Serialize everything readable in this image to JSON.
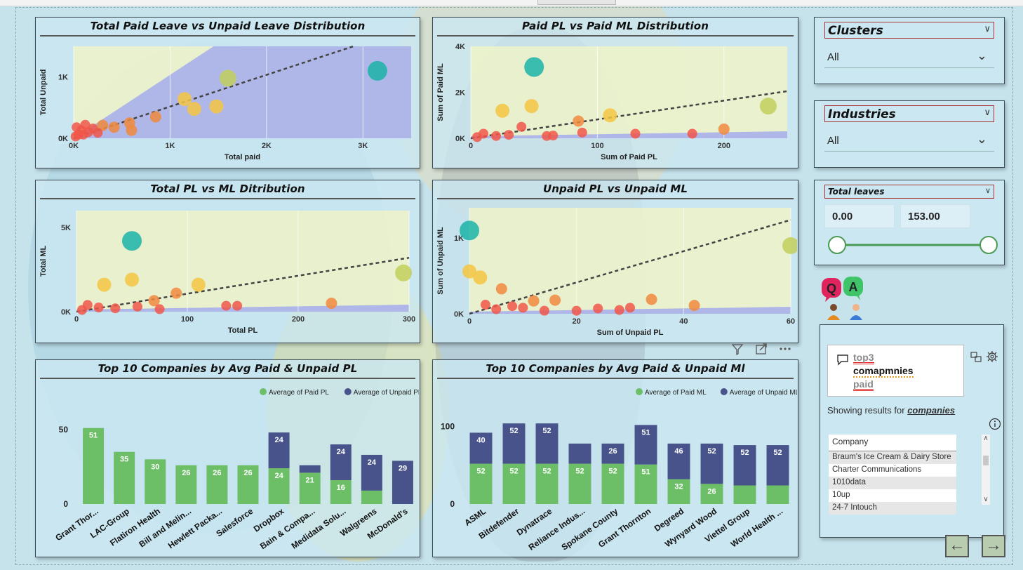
{
  "colors": {
    "paid": "#6dbf67",
    "unpaid": "#47538a",
    "teal": "#1bb3a8",
    "yellow": "#f5c542",
    "orange": "#f08a3e",
    "red": "#f0574a",
    "olive": "#c2cf5a",
    "band_purple": "#a9b0ec",
    "band_yellow": "#eef2c8"
  },
  "scatter1": {
    "title": "Total Paid Leave vs Unpaid Leave Distribution",
    "xlabel": "Total paid",
    "ylabel": "Total Unpaid",
    "xticks": [
      "0K",
      "1K",
      "2K",
      "3K"
    ],
    "yticks": [
      "0K",
      "1K"
    ]
  },
  "scatter2": {
    "title": "Paid PL vs Paid ML Distribution",
    "xlabel": "Sum of Paid PL",
    "ylabel": "Sum of Paid ML",
    "xticks": [
      "0",
      "100",
      "200"
    ],
    "yticks": [
      "0K",
      "2K",
      "4K"
    ]
  },
  "scatter3": {
    "title": "Total PL vs ML Ditribution",
    "xlabel": "Total PL",
    "ylabel": "Total ML",
    "xticks": [
      "0",
      "100",
      "200",
      "300"
    ],
    "yticks": [
      "0K",
      "5K"
    ]
  },
  "scatter4": {
    "title": "Unpaid PL vs Unpaid ML",
    "xlabel": "Sum of Unpaid PL",
    "ylabel": "Sum of Unpaid ML",
    "xticks": [
      "0",
      "20",
      "40",
      "60"
    ],
    "yticks": [
      "0K",
      "1K"
    ]
  },
  "bar1": {
    "title": "Top 10 Companies by Avg Paid & Unpaid PL",
    "legend": [
      "Average of Paid PL",
      "Average of Unpaid PL"
    ],
    "yticks": [
      "0",
      "50"
    ]
  },
  "bar2": {
    "title": "Top 10 Companies by Avg Paid & Unpaid Ml",
    "legend": [
      "Average of Paid ML",
      "Average of Unpaid ML"
    ],
    "yticks": [
      "0",
      "100"
    ]
  },
  "chart_data": [
    {
      "type": "scatter",
      "title": "Total Paid Leave vs Unpaid Leave Distribution",
      "xlabel": "Total paid",
      "ylabel": "Total Unpaid",
      "xlim": [
        0,
        3500
      ],
      "ylim": [
        0,
        1500
      ],
      "points": [
        [
          3150,
          1100,
          "teal"
        ],
        [
          1600,
          980,
          "olive"
        ],
        [
          1150,
          640,
          "yellow"
        ],
        [
          1250,
          480,
          "yellow"
        ],
        [
          1480,
          520,
          "yellow"
        ],
        [
          850,
          350,
          "orange"
        ],
        [
          600,
          130,
          "orange"
        ],
        [
          580,
          250,
          "orange"
        ],
        [
          420,
          180,
          "orange"
        ],
        [
          300,
          210,
          "orange"
        ],
        [
          200,
          160,
          "red"
        ],
        [
          150,
          100,
          "red"
        ],
        [
          120,
          220,
          "red"
        ],
        [
          80,
          130,
          "red"
        ],
        [
          50,
          60,
          "red"
        ],
        [
          30,
          180,
          "red"
        ],
        [
          20,
          30,
          "red"
        ],
        [
          100,
          60,
          "red"
        ],
        [
          250,
          90,
          "red"
        ]
      ],
      "trend": [
        [
          0,
          0
        ],
        [
          2900,
          1500
        ]
      ]
    },
    {
      "type": "scatter",
      "title": "Paid PL vs Paid ML Distribution",
      "xlabel": "Sum of Paid PL",
      "ylabel": "Sum of Paid ML",
      "xlim": [
        0,
        250
      ],
      "ylim": [
        0,
        4000
      ],
      "points": [
        [
          50,
          3100,
          "teal"
        ],
        [
          235,
          1400,
          "olive"
        ],
        [
          25,
          1200,
          "yellow"
        ],
        [
          48,
          1400,
          "yellow"
        ],
        [
          110,
          1000,
          "yellow"
        ],
        [
          85,
          750,
          "orange"
        ],
        [
          200,
          400,
          "orange"
        ],
        [
          40,
          500,
          "red"
        ],
        [
          88,
          250,
          "red"
        ],
        [
          130,
          200,
          "red"
        ],
        [
          175,
          200,
          "red"
        ],
        [
          10,
          200,
          "red"
        ],
        [
          20,
          100,
          "red"
        ],
        [
          30,
          150,
          "red"
        ],
        [
          60,
          100,
          "red"
        ],
        [
          65,
          120,
          "red"
        ],
        [
          5,
          50,
          "red"
        ]
      ],
      "trend": [
        [
          0,
          0
        ],
        [
          250,
          2050
        ]
      ]
    },
    {
      "type": "scatter",
      "title": "Total PL vs ML Ditribution",
      "xlabel": "Total PL",
      "ylabel": "Total ML",
      "xlim": [
        0,
        300
      ],
      "ylim": [
        0,
        6000
      ],
      "points": [
        [
          50,
          4200,
          "teal"
        ],
        [
          295,
          2300,
          "olive"
        ],
        [
          50,
          1900,
          "yellow"
        ],
        [
          25,
          1600,
          "yellow"
        ],
        [
          110,
          1600,
          "yellow"
        ],
        [
          90,
          1100,
          "orange"
        ],
        [
          70,
          650,
          "orange"
        ],
        [
          230,
          500,
          "orange"
        ],
        [
          135,
          350,
          "red"
        ],
        [
          145,
          350,
          "red"
        ],
        [
          10,
          400,
          "red"
        ],
        [
          20,
          250,
          "red"
        ],
        [
          35,
          200,
          "red"
        ],
        [
          55,
          300,
          "red"
        ],
        [
          75,
          150,
          "red"
        ],
        [
          5,
          100,
          "red"
        ]
      ],
      "trend": [
        [
          0,
          0
        ],
        [
          300,
          3200
        ]
      ]
    },
    {
      "type": "scatter",
      "title": "Unpaid PL vs Unpaid ML",
      "xlabel": "Sum of Unpaid PL",
      "ylabel": "Sum of Unpaid ML",
      "xlim": [
        0,
        60
      ],
      "ylim": [
        0,
        1400
      ],
      "points": [
        [
          0,
          1100,
          "teal"
        ],
        [
          60,
          900,
          "olive"
        ],
        [
          0,
          560,
          "yellow"
        ],
        [
          2,
          480,
          "yellow"
        ],
        [
          6,
          330,
          "orange"
        ],
        [
          12,
          170,
          "orange"
        ],
        [
          16,
          180,
          "orange"
        ],
        [
          34,
          190,
          "orange"
        ],
        [
          42,
          110,
          "orange"
        ],
        [
          5,
          60,
          "red"
        ],
        [
          10,
          80,
          "red"
        ],
        [
          14,
          40,
          "red"
        ],
        [
          24,
          70,
          "red"
        ],
        [
          28,
          50,
          "red"
        ],
        [
          30,
          80,
          "red"
        ],
        [
          3,
          120,
          "red"
        ],
        [
          8,
          100,
          "red"
        ],
        [
          20,
          40,
          "red"
        ]
      ],
      "trend": [
        [
          0,
          0
        ],
        [
          60,
          1240
        ]
      ]
    },
    {
      "type": "bar",
      "stacked": true,
      "title": "Top 10 Companies by Avg Paid & Unpaid PL",
      "ylim": [
        0,
        65
      ],
      "categories": [
        "Grant Thor...",
        "LAC-Group",
        "Flatiron Health",
        "Bill and Melin...",
        "Hewlett Packa...",
        "Salesforce",
        "Dropbox",
        "Bain & Compa...",
        "Medidata Solu...",
        "Walgreens",
        "McDonald's"
      ],
      "series": [
        {
          "name": "Average of Paid PL",
          "values": [
            51,
            35,
            30,
            26,
            26,
            26,
            24,
            21,
            16,
            9,
            0
          ],
          "labels": [
            "51",
            "35",
            "30",
            "26",
            "26",
            "26",
            "24",
            "21",
            "16",
            "",
            ""
          ]
        },
        {
          "name": "Average of Unpaid PL",
          "values": [
            0,
            0,
            0,
            0,
            0,
            0,
            24,
            5,
            24,
            24,
            29
          ],
          "labels": [
            "",
            "",
            "",
            "",
            "",
            "",
            "24",
            "",
            "24",
            "24",
            "29"
          ]
        }
      ]
    },
    {
      "type": "bar",
      "stacked": true,
      "title": "Top 10 Companies by Avg Paid & Unpaid Ml",
      "ylim": [
        0,
        125
      ],
      "categories": [
        "ASML",
        "Bitdefender",
        "Dynatrace",
        "Reliance Indus...",
        "Spokane County",
        "Grant Thornton",
        "Degreed",
        "Wynyard Wood",
        "Viettel Group",
        "World Health ..."
      ],
      "series": [
        {
          "name": "Average of Paid ML",
          "values": [
            52,
            52,
            52,
            52,
            52,
            51,
            32,
            26,
            24,
            24
          ],
          "labels": [
            "52",
            "52",
            "52",
            "52",
            "52",
            "51",
            "32",
            "26",
            "",
            ""
          ]
        },
        {
          "name": "Average of Unpaid ML",
          "values": [
            40,
            52,
            52,
            26,
            26,
            51,
            46,
            52,
            52,
            52
          ],
          "labels": [
            "40",
            "52",
            "52",
            "",
            "26",
            "51",
            "46",
            "52",
            "52",
            "52"
          ]
        }
      ]
    }
  ],
  "slicers": {
    "clusters": {
      "title": "Clusters",
      "value": "All"
    },
    "industries": {
      "title": "Industries",
      "value": "All"
    },
    "total_leaves": {
      "title": "Total leaves",
      "min": "0.00",
      "max": "153.00"
    }
  },
  "qa": {
    "query_line1": "top3",
    "query_line2": "comapmnies",
    "query_line3": "paid",
    "showing_prefix": "Showing results for",
    "showing_term": "companies",
    "table_header": "Company",
    "rows": [
      "Braum's Ice Cream & Dairy Store",
      "Charter Communications",
      "1010data",
      "10up",
      "24-7 Intouch"
    ]
  },
  "icons": {
    "qa_button": "qa-icon",
    "nav_back": "arrow-left-icon",
    "nav_forward": "arrow-right-icon"
  }
}
